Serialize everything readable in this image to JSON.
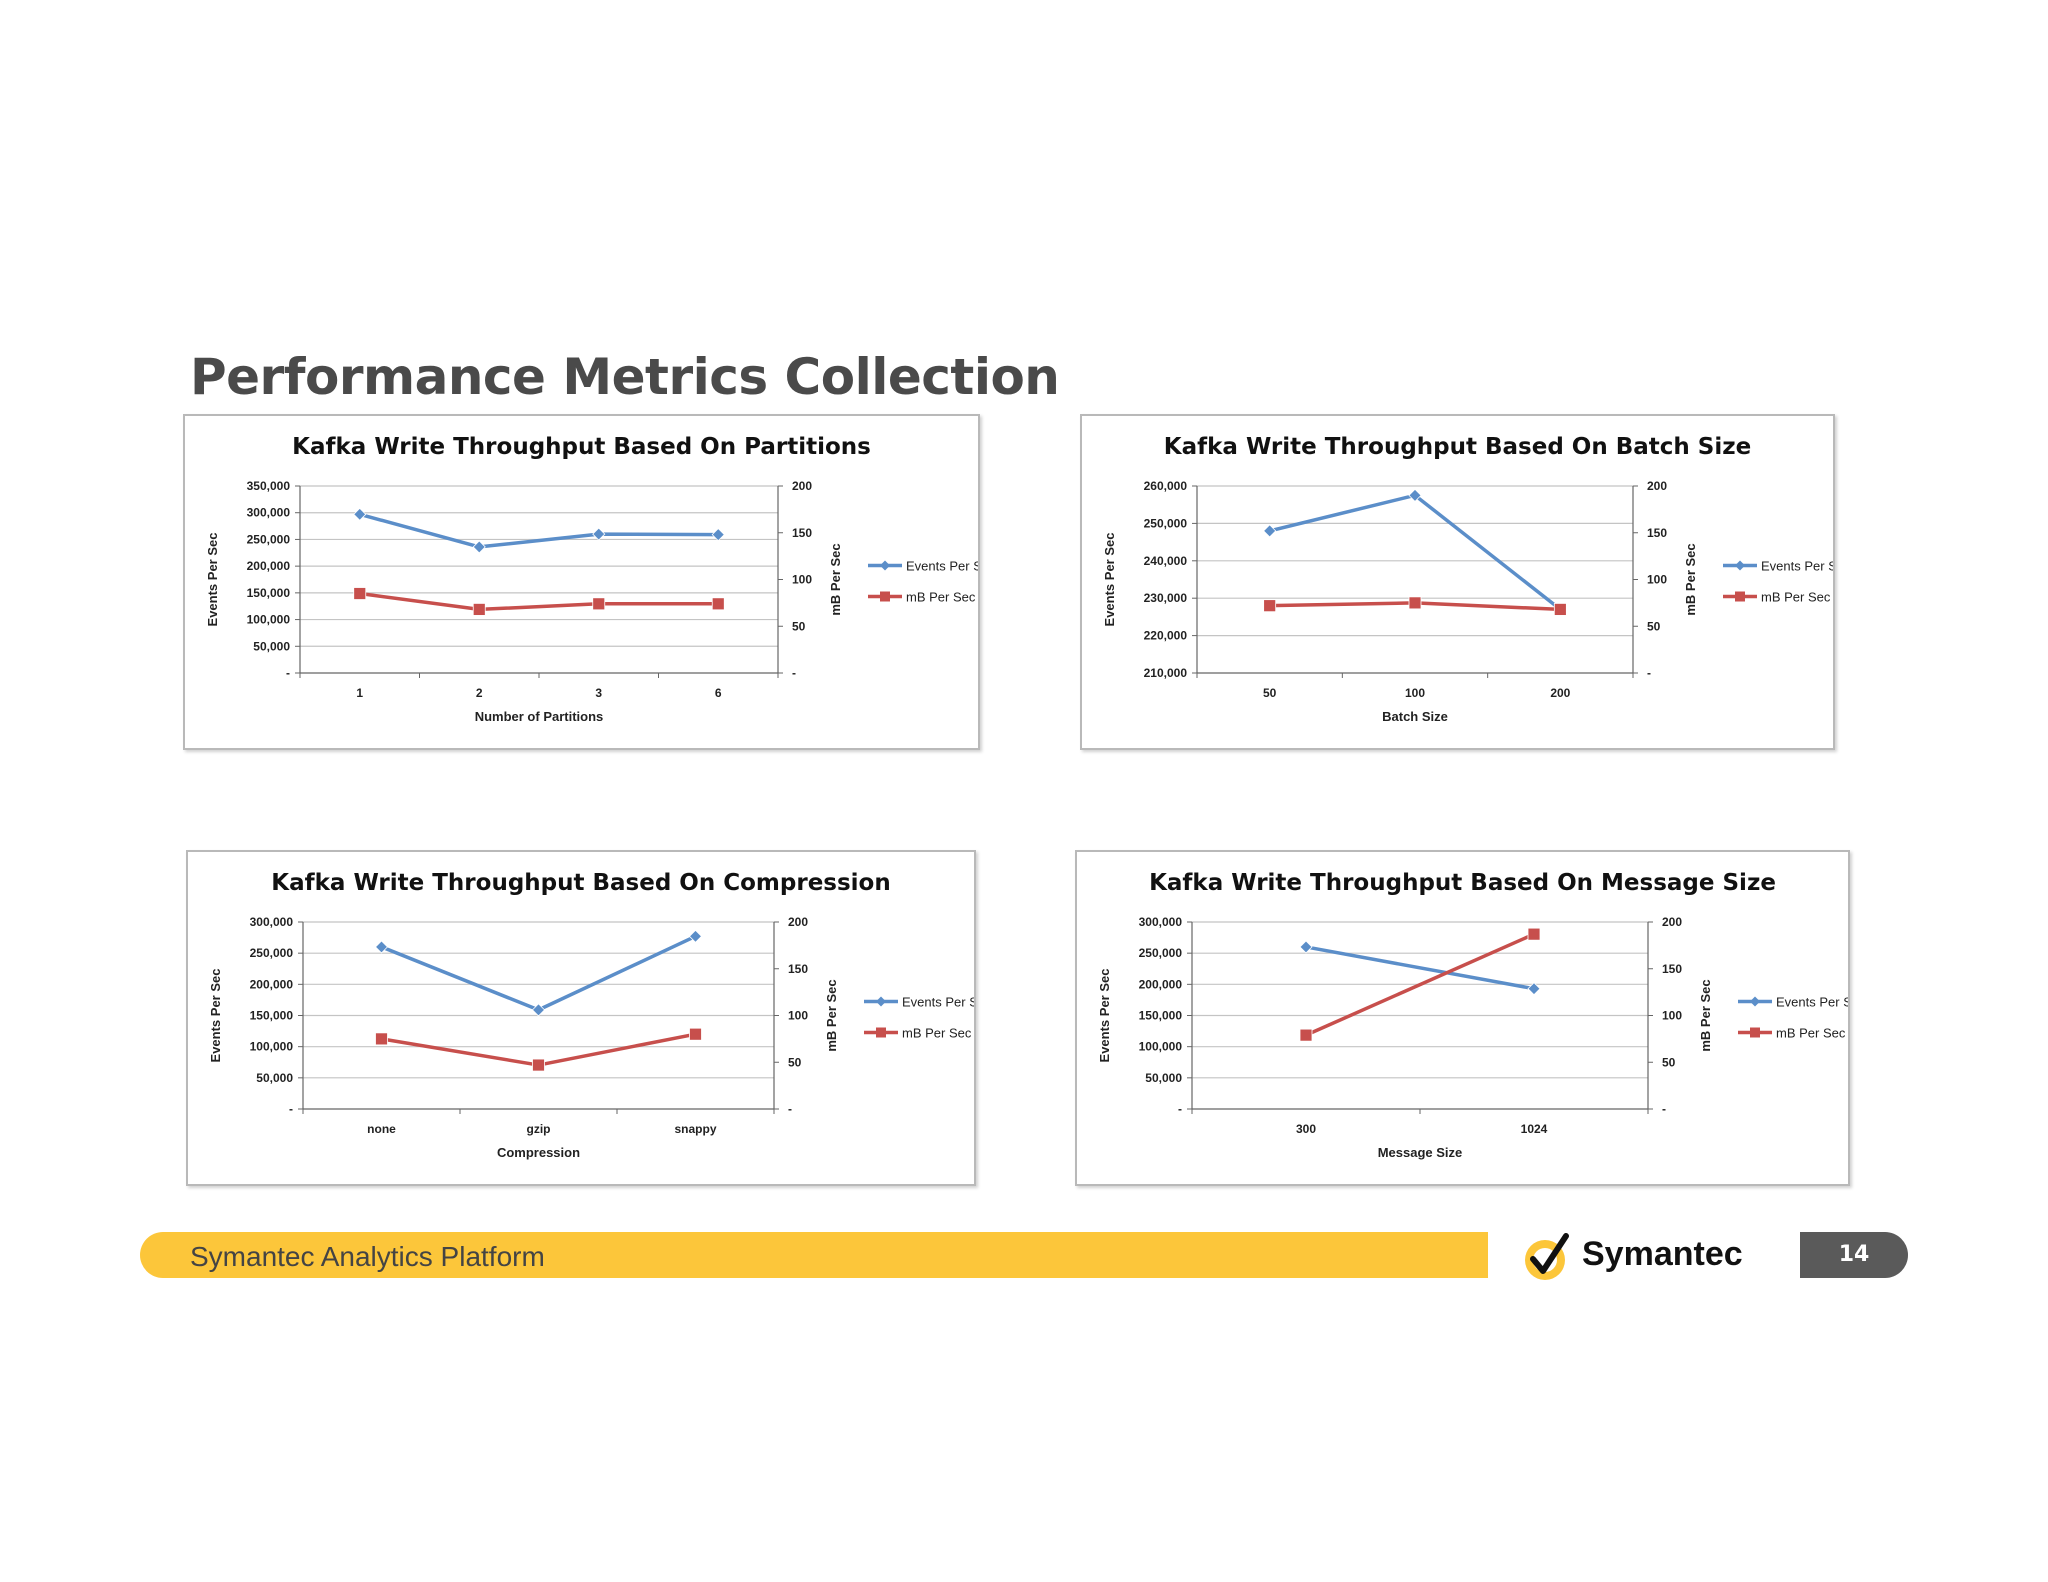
{
  "slide": {
    "title": "Performance Metrics Collection",
    "footer_text": "Symantec Analytics Platform",
    "logo_text": "Symantec",
    "page_number": "14",
    "colors": {
      "accent": "#fcc63a",
      "badge": "#5a5a5a"
    }
  },
  "chart_data": [
    {
      "type": "line",
      "title": "Kafka Write Throughput Based On Partitions",
      "xlabel": "Number of Partitions",
      "ylabel": "Events Per Sec",
      "y2label": "mB Per Sec",
      "categories": [
        "1",
        "2",
        "3",
        "6"
      ],
      "ylim": [
        0,
        350000
      ],
      "yticks": [
        "-",
        "50,000",
        "100,000",
        "150,000",
        "200,000",
        "250,000",
        "300,000",
        "350,000"
      ],
      "y2lim": [
        0,
        200
      ],
      "y2ticks": [
        "-",
        "50",
        "100",
        "150",
        "200"
      ],
      "grid": true,
      "legend_position": "right",
      "series": [
        {
          "name": "Events Per Sec.",
          "axis": "left",
          "color": "#5b8ec9",
          "marker": "diamond",
          "values": [
            297000,
            236000,
            260000,
            259000
          ]
        },
        {
          "name": "mB Per Sec",
          "axis": "right",
          "color": "#c74f4c",
          "marker": "square",
          "values": [
            85,
            68,
            74,
            74
          ]
        }
      ]
    },
    {
      "type": "line",
      "title": "Kafka Write Throughput Based On Batch Size",
      "xlabel": "Batch Size",
      "ylabel": "Events Per Sec",
      "y2label": "mB Per Sec",
      "categories": [
        "50",
        "100",
        "200"
      ],
      "ylim": [
        210000,
        260000
      ],
      "yticks": [
        "210,000",
        "220,000",
        "230,000",
        "240,000",
        "250,000",
        "260,000"
      ],
      "y2lim": [
        0,
        200
      ],
      "y2ticks": [
        "-",
        "50",
        "100",
        "150",
        "200"
      ],
      "grid": true,
      "legend_position": "right",
      "series": [
        {
          "name": "Events Per Sec.",
          "axis": "left",
          "color": "#5b8ec9",
          "marker": "diamond",
          "values": [
            248000,
            257500,
            227000
          ]
        },
        {
          "name": "mB Per Sec",
          "axis": "right",
          "color": "#c74f4c",
          "marker": "square",
          "values": [
            72,
            75,
            68
          ]
        }
      ]
    },
    {
      "type": "line",
      "title": "Kafka Write Throughput Based On Compression",
      "xlabel": "Compression",
      "ylabel": "Events Per Sec",
      "y2label": "mB Per Sec",
      "categories": [
        "none",
        "gzip",
        "snappy"
      ],
      "ylim": [
        0,
        300000
      ],
      "yticks": [
        "-",
        "50,000",
        "100,000",
        "150,000",
        "200,000",
        "250,000",
        "300,000"
      ],
      "y2lim": [
        0,
        200
      ],
      "y2ticks": [
        "-",
        "50",
        "100",
        "150",
        "200"
      ],
      "grid": true,
      "legend_position": "right",
      "series": [
        {
          "name": "Events Per Sec",
          "axis": "left",
          "color": "#5b8ec9",
          "marker": "diamond",
          "values": [
            260000,
            159000,
            277000
          ]
        },
        {
          "name": "mB Per Sec",
          "axis": "right",
          "color": "#c74f4c",
          "marker": "square",
          "values": [
            75,
            47,
            80
          ]
        }
      ]
    },
    {
      "type": "line",
      "title": "Kafka Write Throughput Based On Message Size",
      "xlabel": "Message Size",
      "ylabel": "Events Per Sec",
      "y2label": "mB Per Sec",
      "categories": [
        "300",
        "1024"
      ],
      "ylim": [
        0,
        300000
      ],
      "yticks": [
        "-",
        "50,000",
        "100,000",
        "150,000",
        "200,000",
        "250,000",
        "300,000"
      ],
      "y2lim": [
        0,
        200
      ],
      "y2ticks": [
        "-",
        "50",
        "100",
        "150",
        "200"
      ],
      "grid": true,
      "legend_position": "right",
      "series": [
        {
          "name": "Events Per Sec.",
          "axis": "left",
          "color": "#5b8ec9",
          "marker": "diamond",
          "values": [
            260000,
            193000
          ]
        },
        {
          "name": "mB Per Sec",
          "axis": "right",
          "color": "#c74f4c",
          "marker": "square",
          "values": [
            79,
            187
          ]
        }
      ]
    }
  ]
}
